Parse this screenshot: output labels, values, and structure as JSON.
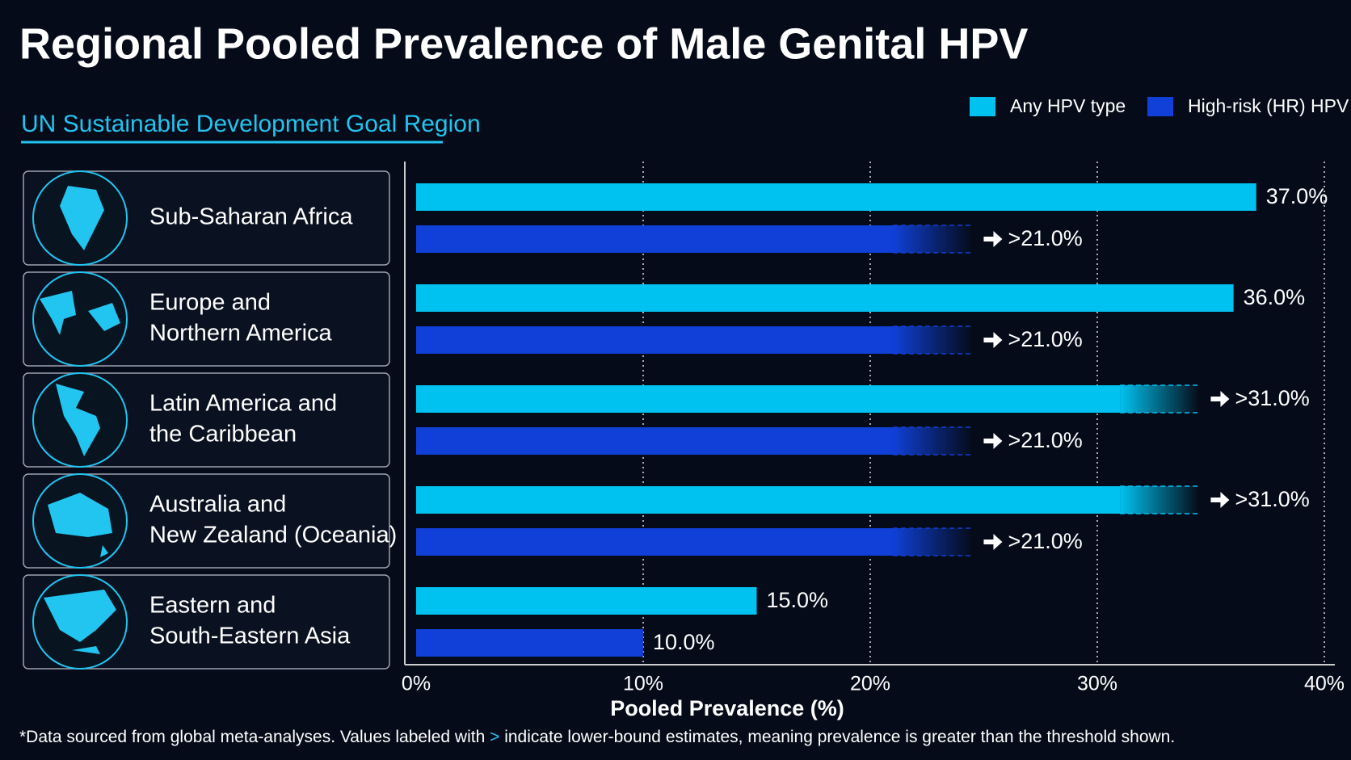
{
  "chart_data": {
    "type": "bar",
    "orientation": "horizontal",
    "title": "Regional Pooled Prevalence of Male Genital HPV",
    "subtitle": "UN Sustainable Development Goal Region",
    "categories": [
      [
        "Sub-Saharan Africa"
      ],
      [
        "Europe and",
        "Northern America"
      ],
      [
        "Latin America and",
        "the Caribbean"
      ],
      [
        "Australia and",
        "New Zealand (Oceania)"
      ],
      [
        "Eastern and",
        "South-Eastern Asia"
      ]
    ],
    "series": [
      {
        "name": "Any HPV type",
        "color": "#00c2f0",
        "values": [
          37,
          36,
          31,
          31,
          15
        ],
        "value_labels": [
          "37.0%",
          "36.0%",
          ">31.0%",
          ">31.0%",
          "15.0%"
        ]
      },
      {
        "name": "High-risk (HR) HPV",
        "color": "#1040d8",
        "values": [
          21,
          21,
          21,
          21,
          10
        ],
        "value_labels": [
          ">21.0%",
          ">21.0%",
          ">21.0%",
          ">21.0%",
          "10.0%"
        ]
      }
    ],
    "xlim": [
      0,
      40
    ],
    "xticks": [
      {
        "value": 0,
        "label": "0%"
      },
      {
        "value": 10,
        "label": "10%"
      },
      {
        "value": 20,
        "label": "20%"
      },
      {
        "value": 30,
        "label": "30%"
      },
      {
        "value": 40,
        "label": "40%"
      }
    ],
    "xlabel": "Pooled Prevalence (%)",
    "grid": true,
    "legend": "top-right",
    "footnote": [
      "*Data sourced from global meta-analyses. Values labeled with ",
      ">",
      " indicate lower-bound estimates, meaning prevalence is greater than the threshold shown."
    ]
  }
}
